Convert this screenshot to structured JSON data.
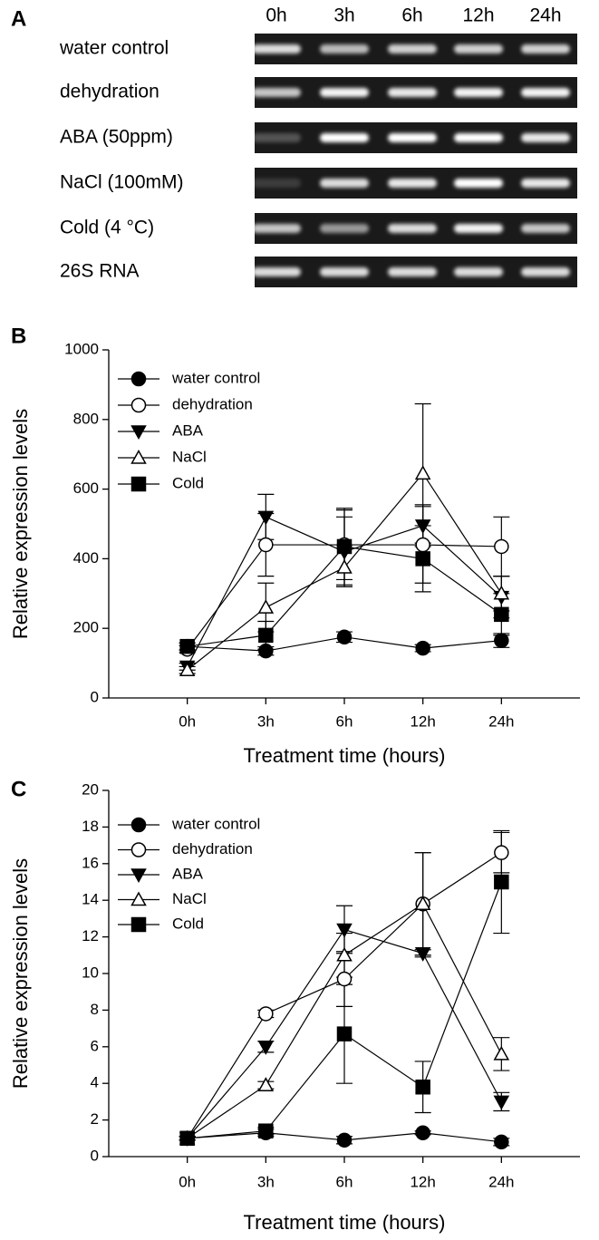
{
  "panel_a": {
    "label": "A",
    "lanes": [
      "0h",
      "3h",
      "6h",
      "12h",
      "24h"
    ],
    "rows": [
      "water control",
      "dehydration",
      "ABA  (50ppm)",
      "NaCl (100mM)",
      "Cold  (4 °C)",
      "26S RNA"
    ]
  },
  "chart_data": [
    {
      "type": "line",
      "label": "B",
      "x_label": "Treatment time (hours)",
      "y_label": "Relative expression levels",
      "categories": [
        "0h",
        "3h",
        "6h",
        "12h",
        "24h"
      ],
      "ylim": [
        0,
        1000
      ],
      "yticks": [
        0,
        200,
        400,
        600,
        800,
        1000
      ],
      "series": [
        {
          "name": "water control",
          "color": "#000000",
          "marker": "circle",
          "filled": true,
          "values": [
            148,
            135,
            175,
            143,
            165
          ],
          "errors": [
            10,
            12,
            15,
            10,
            20
          ]
        },
        {
          "name": "dehydration",
          "color": "#000000",
          "marker": "circle",
          "filled": false,
          "values": [
            140,
            440,
            440,
            440,
            435
          ],
          "errors": [
            10,
            90,
            100,
            110,
            85
          ]
        },
        {
          "name": "ABA",
          "color": "#000000",
          "marker": "triangle-down",
          "filled": true,
          "values": [
            90,
            520,
            420,
            495,
            290
          ],
          "errors": [
            10,
            65,
            100,
            60,
            60
          ]
        },
        {
          "name": "NaCl",
          "color": "#000000",
          "marker": "triangle-up",
          "filled": false,
          "values": [
            80,
            260,
            375,
            645,
            300
          ],
          "errors": [
            10,
            70,
            55,
            200,
            50
          ]
        },
        {
          "name": "Cold",
          "color": "#000000",
          "marker": "square",
          "filled": true,
          "values": [
            148,
            180,
            435,
            400,
            240
          ],
          "errors": [
            10,
            40,
            110,
            95,
            60
          ]
        }
      ]
    },
    {
      "type": "line",
      "label": "C",
      "x_label": "Treatment time (hours)",
      "y_label": "Relative expression levels",
      "categories": [
        "0h",
        "3h",
        "6h",
        "12h",
        "24h"
      ],
      "ylim": [
        0,
        20
      ],
      "yticks": [
        0,
        2,
        4,
        6,
        8,
        10,
        12,
        14,
        16,
        18,
        20
      ],
      "series": [
        {
          "name": "water control",
          "color": "#000000",
          "marker": "circle",
          "filled": true,
          "values": [
            1,
            1.3,
            0.9,
            1.3,
            0.8
          ],
          "errors": [
            0.1,
            0.2,
            0.2,
            0.1,
            0.2
          ]
        },
        {
          "name": "dehydration",
          "color": "#000000",
          "marker": "circle",
          "filled": false,
          "values": [
            1,
            7.8,
            9.7,
            13.8,
            16.6
          ],
          "errors": [
            0.1,
            0.2,
            1.5,
            2.8,
            1.1
          ]
        },
        {
          "name": "ABA",
          "color": "#000000",
          "marker": "triangle-down",
          "filled": true,
          "values": [
            1,
            6.0,
            12.4,
            11.1,
            3.0
          ],
          "errors": [
            0.1,
            0.3,
            1.3,
            0.2,
            0.5
          ]
        },
        {
          "name": "NaCl",
          "color": "#000000",
          "marker": "triangle-up",
          "filled": false,
          "values": [
            1,
            3.9,
            11.0,
            13.8,
            5.6
          ],
          "errors": [
            0.1,
            0.2,
            1.2,
            2.8,
            0.9
          ]
        },
        {
          "name": "Cold",
          "color": "#000000",
          "marker": "square",
          "filled": true,
          "values": [
            1,
            1.4,
            6.7,
            3.8,
            15.0
          ],
          "errors": [
            0.1,
            0.2,
            2.7,
            1.4,
            2.8
          ]
        }
      ]
    }
  ]
}
